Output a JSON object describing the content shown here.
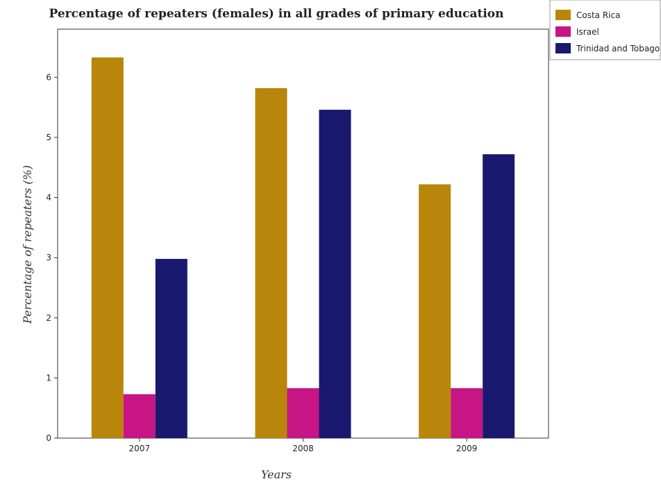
{
  "chart_data": {
    "type": "bar",
    "title": "Percentage of repeaters (females) in all grades of primary education",
    "xlabel": "Years",
    "ylabel": "Percentage of repeaters (%)",
    "categories": [
      "2007",
      "2008",
      "2009"
    ],
    "ylim": [
      0,
      6.8
    ],
    "yticks": [
      0,
      1,
      2,
      3,
      4,
      5,
      6
    ],
    "grid": false,
    "legend": "top-right",
    "series": [
      {
        "name": "Costa Rica",
        "color": "#b8860b",
        "values": [
          6.33,
          5.82,
          4.22
        ]
      },
      {
        "name": "Israel",
        "color": "#c71585",
        "values": [
          0.73,
          0.83,
          0.83
        ]
      },
      {
        "name": "Trinidad and Tobago",
        "color": "#191970",
        "values": [
          2.98,
          5.46,
          4.72
        ]
      }
    ]
  }
}
